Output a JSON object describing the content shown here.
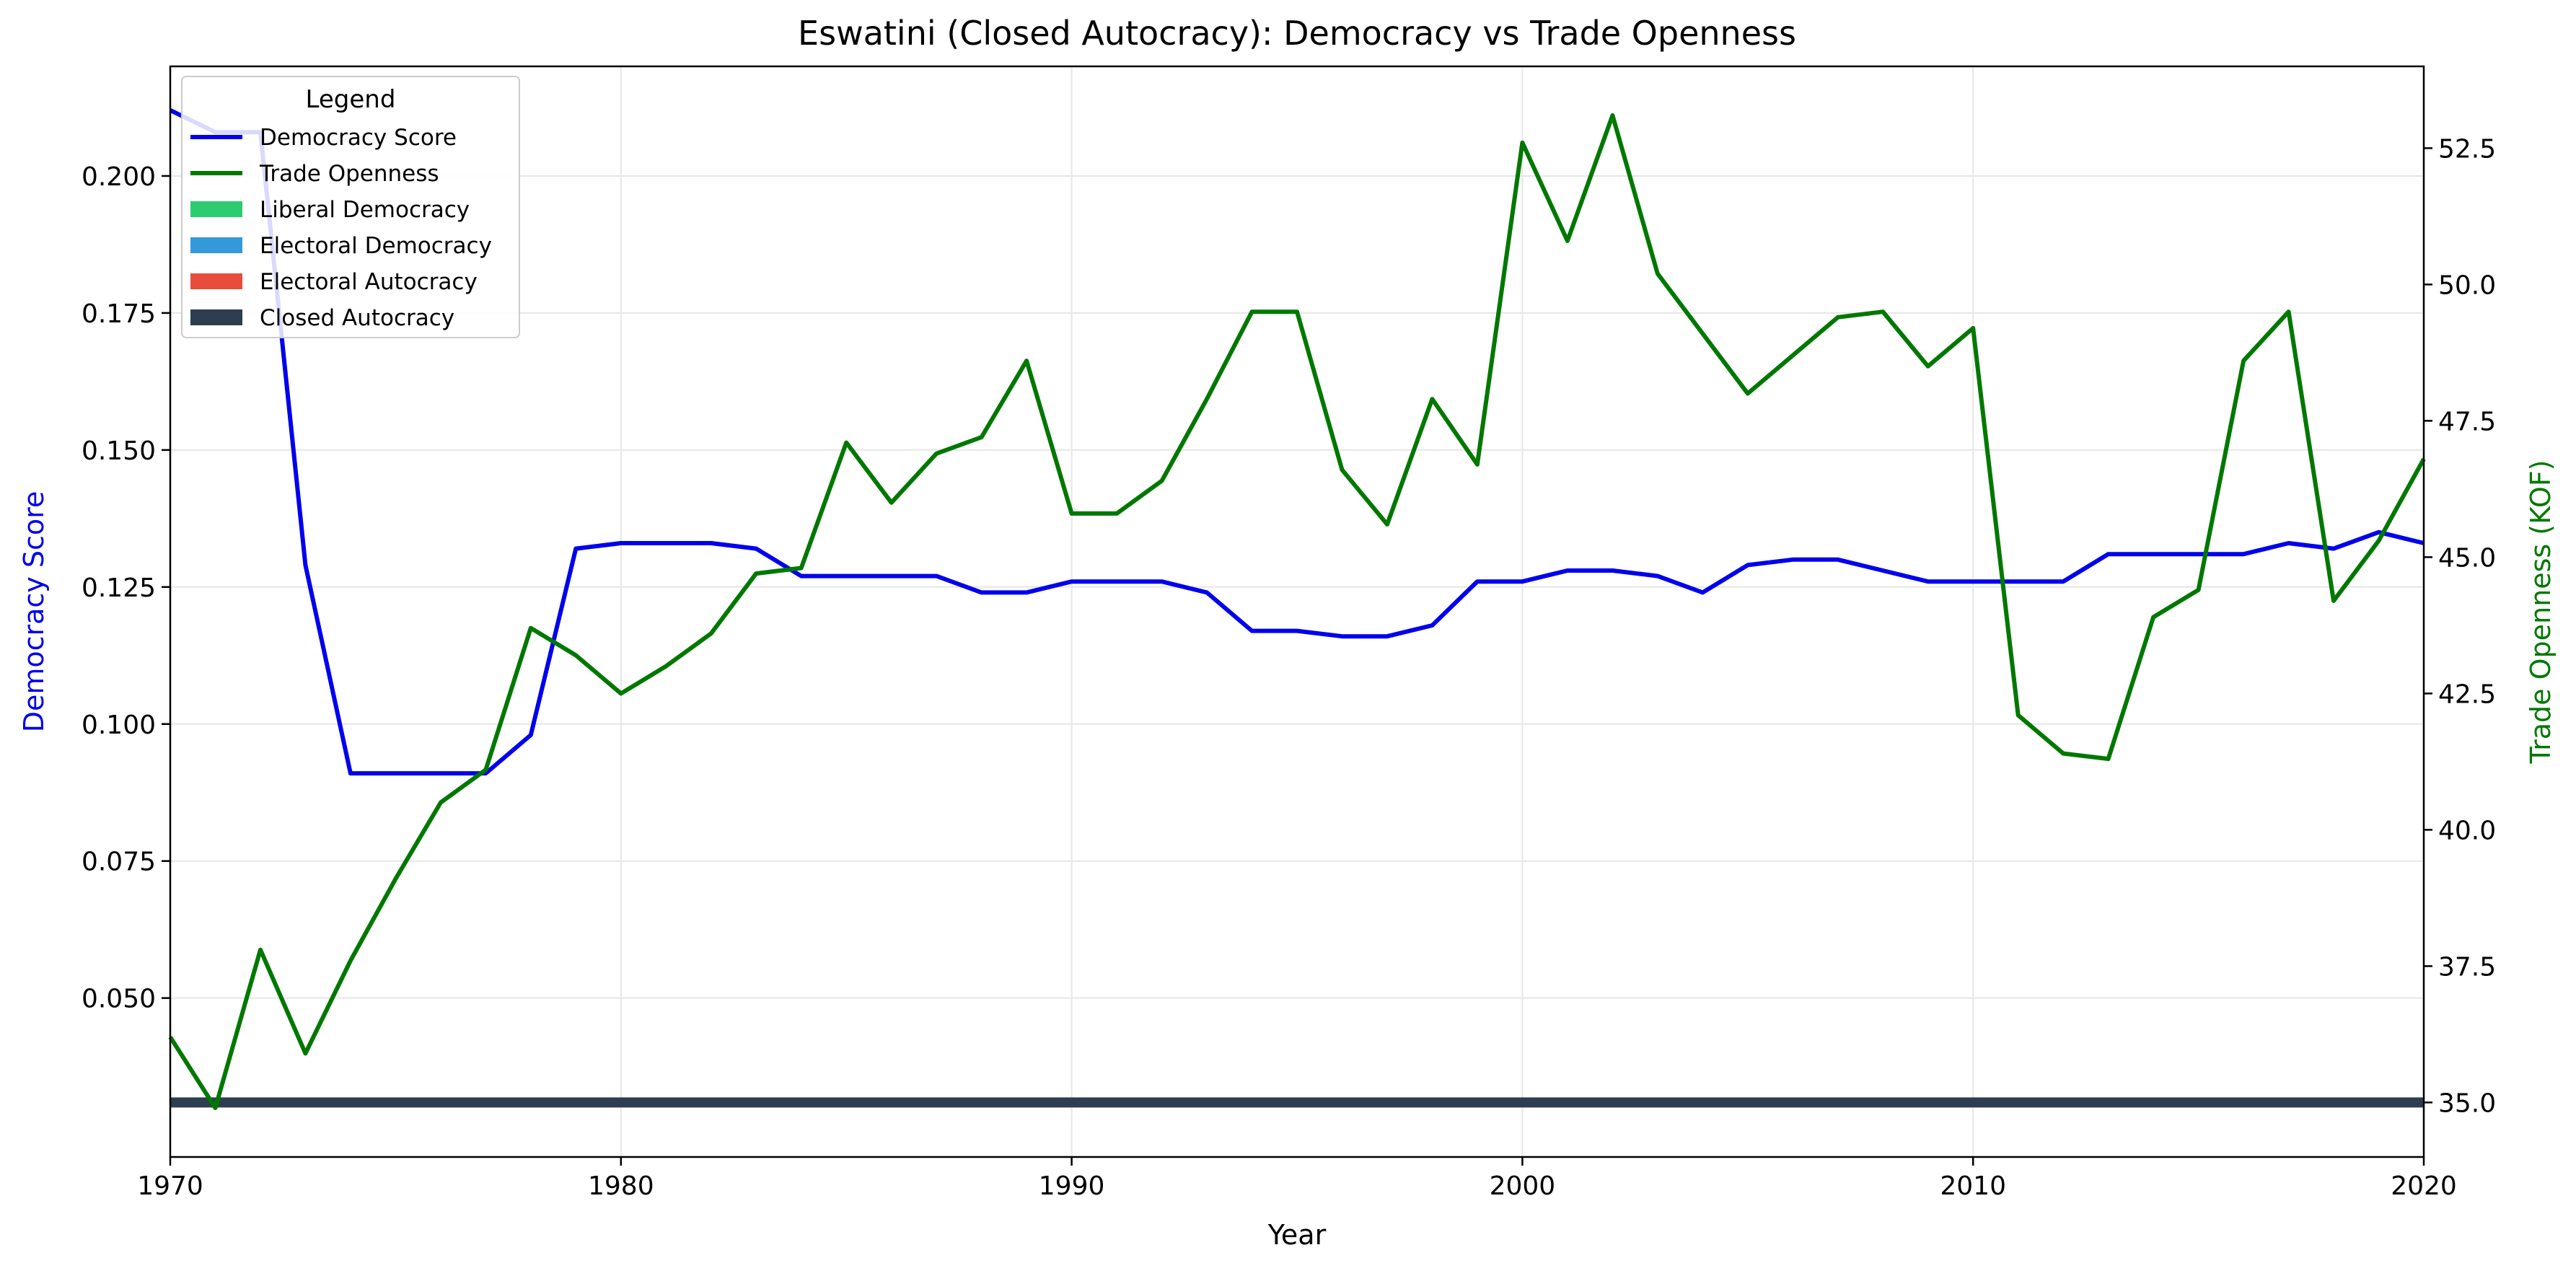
{
  "chart_data": {
    "type": "line",
    "title": "Eswatini (Closed Autocracy): Democracy vs Trade Openness",
    "xlabel": "Year",
    "ylabel_left": "Democracy Score",
    "ylabel_right": "Trade Openness (KOF)",
    "xlim": [
      1970,
      2020
    ],
    "ylim_left": [
      0.021,
      0.22
    ],
    "ylim_right": [
      34,
      54
    ],
    "xticks": [
      "1970",
      "1980",
      "1990",
      "2000",
      "2010",
      "2020"
    ],
    "yticks_left": [
      "0.050",
      "0.075",
      "0.100",
      "0.125",
      "0.150",
      "0.175",
      "0.200"
    ],
    "yticks_right": [
      "35.0",
      "37.5",
      "40.0",
      "42.5",
      "45.0",
      "47.5",
      "50.0",
      "52.5"
    ],
    "grid": true,
    "legend_title": "Legend",
    "legend_position": "upper-left",
    "legend_entries": [
      {
        "label": "Democracy Score",
        "kind": "line",
        "color": "#0000ee"
      },
      {
        "label": "Trade Openness",
        "kind": "line",
        "color": "#007800"
      },
      {
        "label": "Liberal Democracy",
        "kind": "patch",
        "color": "#2ecc71"
      },
      {
        "label": "Electoral Democracy",
        "kind": "patch",
        "color": "#3498db"
      },
      {
        "label": "Electoral Autocracy",
        "kind": "patch",
        "color": "#e74c3c"
      },
      {
        "label": "Closed Autocracy",
        "kind": "patch",
        "color": "#2c3e50"
      }
    ],
    "regime_band": {
      "label": "Closed Autocracy",
      "from": 1970,
      "to": 2020,
      "color": "#2c3e50"
    },
    "x": [
      1970,
      1971,
      1972,
      1973,
      1974,
      1975,
      1976,
      1977,
      1978,
      1979,
      1980,
      1981,
      1982,
      1983,
      1984,
      1985,
      1986,
      1987,
      1988,
      1989,
      1990,
      1991,
      1992,
      1993,
      1994,
      1995,
      1996,
      1997,
      1998,
      1999,
      2000,
      2001,
      2002,
      2003,
      2004,
      2005,
      2006,
      2007,
      2008,
      2009,
      2010,
      2011,
      2012,
      2013,
      2014,
      2015,
      2016,
      2017,
      2018,
      2019,
      2020
    ],
    "series": [
      {
        "name": "Democracy Score",
        "axis": "left",
        "color": "#0000ee",
        "values": [
          0.212,
          0.208,
          0.208,
          0.129,
          0.091,
          0.091,
          0.091,
          0.091,
          0.098,
          0.132,
          0.133,
          0.133,
          0.133,
          0.132,
          0.127,
          0.127,
          0.127,
          0.127,
          0.124,
          0.124,
          0.126,
          0.126,
          0.126,
          0.124,
          0.117,
          0.117,
          0.116,
          0.116,
          0.118,
          0.126,
          0.126,
          0.128,
          0.128,
          0.127,
          0.124,
          0.129,
          0.13,
          0.13,
          0.128,
          0.126,
          0.126,
          0.126,
          0.126,
          0.131,
          0.131,
          0.131,
          0.131,
          0.133,
          0.132,
          0.135,
          0.133
        ]
      },
      {
        "name": "Trade Openness",
        "axis": "right",
        "color": "#007800",
        "values": [
          36.2,
          34.9,
          37.8,
          35.9,
          37.6,
          39.1,
          40.5,
          41.1,
          43.7,
          43.2,
          42.5,
          43.0,
          43.6,
          44.7,
          44.8,
          47.1,
          46.0,
          46.9,
          47.2,
          48.6,
          45.8,
          45.8,
          46.4,
          47.9,
          49.5,
          49.5,
          46.6,
          45.6,
          47.9,
          46.7,
          52.6,
          50.8,
          53.1,
          50.2,
          49.1,
          48.0,
          48.7,
          49.4,
          49.5,
          48.5,
          49.2,
          42.1,
          41.4,
          41.3,
          43.9,
          44.4,
          48.6,
          49.5,
          44.2,
          45.3,
          46.8
        ]
      }
    ]
  }
}
